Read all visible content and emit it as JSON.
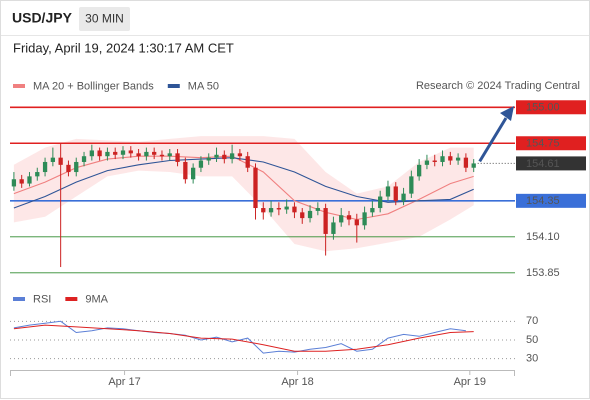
{
  "chart_data": {
    "type": "candlestick",
    "title": "USD/JPY",
    "timeframe": "30 MIN",
    "subtitle": "Friday, April 19, 2024 1:30:17 AM CET",
    "credit": "Research © 2024 Trading Central",
    "xlim": [
      -0.5,
      64.3
    ],
    "ylim": [
      153.8,
      155.12
    ],
    "xticks": [
      {
        "value": 14.2,
        "label": "Apr 17"
      },
      {
        "value": 36.4,
        "label": "Apr 18"
      },
      {
        "value": 58.5,
        "label": "Apr 19"
      }
    ],
    "up_color": "#2e8b57",
    "down_color": "#cc2222",
    "candles": [
      [
        154.45,
        154.55,
        154.42,
        154.5
      ],
      [
        154.5,
        154.53,
        154.44,
        154.47
      ],
      [
        154.47,
        154.55,
        154.45,
        154.52
      ],
      [
        154.52,
        154.58,
        154.49,
        154.55
      ],
      [
        154.55,
        154.65,
        154.52,
        154.62
      ],
      [
        154.62,
        154.72,
        154.59,
        154.65
      ],
      [
        154.65,
        154.75,
        153.89,
        154.6
      ],
      [
        154.6,
        154.63,
        154.52,
        154.55
      ],
      [
        154.55,
        154.65,
        154.52,
        154.62
      ],
      [
        154.62,
        154.69,
        154.59,
        154.66
      ],
      [
        154.66,
        154.74,
        154.63,
        154.7
      ],
      [
        154.7,
        154.72,
        154.63,
        154.66
      ],
      [
        154.66,
        154.72,
        154.63,
        154.69
      ],
      [
        154.69,
        154.72,
        154.64,
        154.67
      ],
      [
        154.67,
        154.73,
        154.64,
        154.7
      ],
      [
        154.7,
        154.73,
        154.65,
        154.68
      ],
      [
        154.68,
        154.71,
        154.63,
        154.66
      ],
      [
        154.66,
        154.72,
        154.63,
        154.69
      ],
      [
        154.69,
        154.72,
        154.64,
        154.67
      ],
      [
        154.67,
        154.7,
        154.63,
        154.66
      ],
      [
        154.66,
        154.71,
        154.63,
        154.68
      ],
      [
        154.68,
        154.71,
        154.59,
        154.62
      ],
      [
        154.62,
        154.65,
        154.47,
        154.5
      ],
      [
        154.5,
        154.61,
        154.47,
        154.58
      ],
      [
        154.58,
        154.66,
        154.55,
        154.63
      ],
      [
        154.63,
        154.68,
        154.6,
        154.65
      ],
      [
        154.65,
        154.72,
        154.62,
        154.67
      ],
      [
        154.67,
        154.7,
        154.61,
        154.64
      ],
      [
        154.64,
        154.74,
        154.61,
        154.68
      ],
      [
        154.68,
        154.71,
        154.63,
        154.66
      ],
      [
        154.66,
        154.69,
        154.55,
        154.58
      ],
      [
        154.58,
        154.61,
        154.22,
        154.3
      ],
      [
        154.3,
        154.34,
        154.22,
        154.27
      ],
      [
        154.27,
        154.35,
        154.24,
        154.3
      ],
      [
        154.3,
        154.34,
        154.25,
        154.29
      ],
      [
        154.29,
        154.36,
        154.26,
        154.31
      ],
      [
        154.31,
        154.34,
        154.23,
        154.27
      ],
      [
        154.27,
        154.3,
        154.19,
        154.23
      ],
      [
        154.23,
        154.32,
        154.2,
        154.28
      ],
      [
        154.28,
        154.34,
        154.25,
        154.3
      ],
      [
        154.3,
        154.33,
        153.97,
        154.12
      ],
      [
        154.12,
        154.24,
        154.08,
        154.2
      ],
      [
        154.2,
        154.3,
        154.17,
        154.25
      ],
      [
        154.25,
        154.28,
        154.18,
        154.22
      ],
      [
        154.22,
        154.26,
        154.06,
        154.18
      ],
      [
        154.18,
        154.31,
        154.15,
        154.27
      ],
      [
        154.27,
        154.35,
        154.24,
        154.3
      ],
      [
        154.3,
        154.42,
        154.27,
        154.38
      ],
      [
        154.38,
        154.49,
        154.35,
        154.45
      ],
      [
        154.45,
        154.48,
        154.32,
        154.35
      ],
      [
        154.35,
        154.44,
        154.32,
        154.4
      ],
      [
        154.4,
        154.56,
        154.37,
        154.52
      ],
      [
        154.52,
        154.64,
        154.49,
        154.6
      ],
      [
        154.6,
        154.67,
        154.57,
        154.63
      ],
      [
        154.63,
        154.67,
        154.59,
        154.62
      ],
      [
        154.62,
        154.7,
        154.59,
        154.66
      ],
      [
        154.66,
        154.69,
        154.6,
        154.63
      ],
      [
        154.63,
        154.68,
        154.6,
        154.65
      ],
      [
        154.65,
        154.68,
        154.55,
        154.58
      ],
      [
        154.58,
        154.64,
        154.55,
        154.61
      ]
    ],
    "series": [
      {
        "name": "MA 20 + Bollinger Bands",
        "color": "#f08080",
        "band_color": "#fde3e3",
        "x": [
          0,
          4,
          8,
          12,
          16,
          20,
          24,
          28,
          32,
          36,
          40,
          44,
          48,
          52,
          56,
          59
        ],
        "values": [
          154.4,
          154.48,
          154.58,
          154.64,
          154.66,
          154.66,
          154.65,
          154.66,
          154.55,
          154.35,
          154.27,
          154.22,
          154.26,
          154.36,
          154.47,
          154.52
        ],
        "upper": [
          154.6,
          154.72,
          154.78,
          154.77,
          154.76,
          154.78,
          154.8,
          154.8,
          154.8,
          154.78,
          154.55,
          154.4,
          154.45,
          154.62,
          154.72,
          154.72
        ],
        "lower": [
          154.2,
          154.24,
          154.38,
          154.52,
          154.56,
          154.55,
          154.52,
          154.52,
          154.3,
          154.05,
          154.0,
          154.02,
          154.06,
          154.1,
          154.22,
          154.32
        ]
      },
      {
        "name": "MA 50",
        "color": "#2f5597",
        "x": [
          0,
          4,
          8,
          12,
          16,
          20,
          24,
          28,
          32,
          36,
          40,
          44,
          48,
          52,
          56,
          59
        ],
        "values": [
          154.3,
          154.38,
          154.48,
          154.56,
          154.6,
          154.63,
          154.64,
          154.65,
          154.62,
          154.55,
          154.45,
          154.38,
          154.34,
          154.35,
          154.36,
          154.43
        ]
      }
    ],
    "levels": [
      {
        "value": 155,
        "label": "155.00",
        "color": "#e02020",
        "box": true
      },
      {
        "value": 154.75,
        "color": "#e02020",
        "box": true
      },
      {
        "value": 154.35,
        "color": "#3a6fd8",
        "box": true
      },
      {
        "value": 154.1,
        "label": "154.10",
        "color": "#2e8b2e",
        "box": false
      },
      {
        "value": 153.85,
        "color": "#2e8b2e",
        "box": false
      }
    ],
    "last": {
      "value": 154.61,
      "color": "#333333"
    },
    "rsi_panel": {
      "ylim": [
        20,
        80
      ],
      "yticks": [
        30,
        50,
        70
      ],
      "series": [
        {
          "name": "RSI",
          "color": "#5b7fd6",
          "x": [
            0,
            2,
            4,
            6,
            8,
            10,
            12,
            14,
            16,
            18,
            20,
            22,
            24,
            26,
            28,
            30,
            32,
            34,
            36,
            38,
            40,
            42,
            44,
            46,
            48,
            50,
            52,
            54,
            56,
            58
          ],
          "values": [
            63,
            66,
            68,
            70,
            58,
            60,
            63,
            62,
            60,
            58,
            57,
            55,
            50,
            53,
            48,
            52,
            36,
            38,
            37,
            40,
            42,
            46,
            38,
            40,
            52,
            56,
            54,
            58,
            62,
            60
          ]
        },
        {
          "name": "9MA",
          "color": "#dd2222",
          "x": [
            0,
            4,
            8,
            12,
            16,
            20,
            24,
            28,
            32,
            36,
            40,
            44,
            48,
            52,
            56,
            59
          ],
          "values": [
            62,
            66,
            64,
            62,
            60,
            57,
            52,
            51,
            45,
            38,
            38,
            40,
            45,
            52,
            58,
            59
          ]
        }
      ]
    }
  }
}
